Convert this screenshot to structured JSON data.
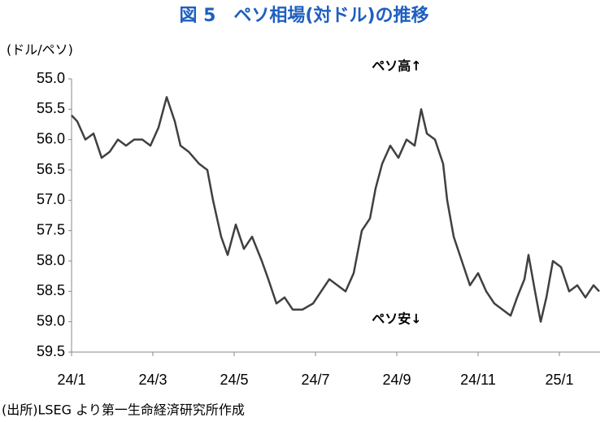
{
  "chart_data": {
    "type": "line",
    "title": "図 5　ペソ相場(対ドル)の推移",
    "y_label": "(ドル/ペソ)",
    "annotations": [
      "ペソ高↑",
      "ペソ安↓"
    ],
    "source": "(出所)LSEG より第一生命経済研究所作成",
    "y_inverted": true,
    "x": [
      0,
      0.14,
      0.34,
      0.54,
      0.74,
      0.94,
      1.14,
      1.34,
      1.54,
      1.74,
      1.94,
      2.14,
      2.34,
      2.54,
      2.68,
      2.88,
      3.14,
      3.34,
      3.48,
      3.68,
      3.84,
      4.04,
      4.24,
      4.44,
      4.68,
      4.84,
      5.04,
      5.24,
      5.44,
      5.68,
      5.94,
      6.14,
      6.34,
      6.54,
      6.74,
      6.94,
      7.14,
      7.34,
      7.48,
      7.64,
      7.84,
      8.04,
      8.24,
      8.44,
      8.6,
      8.74,
      8.94,
      9.14,
      9.24,
      9.4,
      9.6,
      9.8,
      10.0,
      10.2,
      10.4,
      10.6,
      10.8,
      10.96,
      11.14,
      11.24,
      11.4,
      11.54,
      11.68,
      11.84,
      12.04,
      12.24,
      12.44,
      12.64,
      12.84,
      12.98
    ],
    "series": [
      {
        "color": "#404040",
        "values": [
          55.6,
          55.7,
          56.0,
          55.9,
          56.3,
          56.2,
          56.0,
          56.1,
          56.0,
          56.0,
          56.1,
          55.8,
          55.3,
          55.7,
          56.1,
          56.2,
          56.4,
          56.5,
          57.0,
          57.6,
          57.9,
          57.4,
          57.8,
          57.6,
          58.0,
          58.3,
          58.7,
          58.6,
          58.8,
          58.8,
          58.7,
          58.5,
          58.3,
          58.4,
          58.5,
          58.2,
          57.5,
          57.3,
          56.8,
          56.4,
          56.1,
          56.3,
          56.0,
          56.1,
          55.5,
          55.9,
          56.0,
          56.4,
          57.0,
          57.6,
          58.0,
          58.4,
          58.2,
          58.5,
          58.7,
          58.8,
          58.9,
          58.6,
          58.3,
          57.9,
          58.5,
          59.0,
          58.6,
          58.0,
          58.1,
          58.5,
          58.4,
          58.6,
          58.4,
          58.5
        ]
      }
    ],
    "xlim": [
      0,
      13
    ],
    "xticks": [
      {
        "value": 0,
        "label": "24/1"
      },
      {
        "value": 2,
        "label": "24/3"
      },
      {
        "value": 4,
        "label": "24/5"
      },
      {
        "value": 6,
        "label": "24/7"
      },
      {
        "value": 8,
        "label": "24/9"
      },
      {
        "value": 10,
        "label": "24/11"
      },
      {
        "value": 12,
        "label": "25/1"
      }
    ],
    "ylim": [
      55.0,
      59.5
    ],
    "yticks": [
      {
        "value": 55,
        "label": "55.0"
      },
      55.5,
      {
        "value": 56,
        "label": "56.0"
      },
      56.5,
      {
        "value": 57,
        "label": "57.0"
      },
      57.5,
      {
        "value": 58,
        "label": "58.0"
      },
      58.5,
      {
        "value": 59,
        "label": "59.0"
      },
      59.5
    ]
  }
}
